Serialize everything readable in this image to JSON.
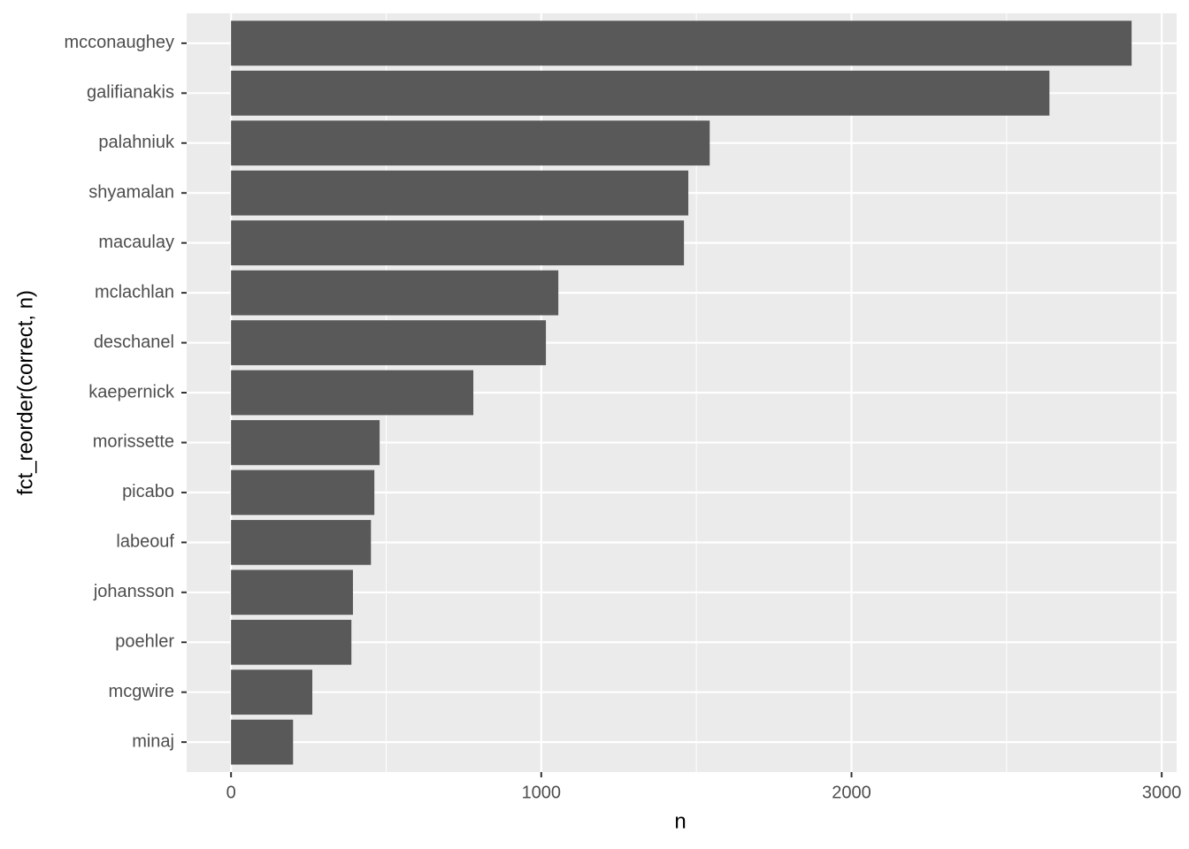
{
  "chart_data": {
    "type": "bar",
    "orientation": "horizontal",
    "x_label": "n",
    "y_label": "fct_reorder(correct, n)",
    "categories": [
      "mcconaughey",
      "galifianakis",
      "palahniuk",
      "shyamalan",
      "macaulay",
      "mclachlan",
      "deschanel",
      "kaepernick",
      "morissette",
      "picabo",
      "labeouf",
      "johansson",
      "poehler",
      "mcgwire",
      "minaj"
    ],
    "values": [
      2903,
      2638,
      1543,
      1474,
      1460,
      1055,
      1015,
      781,
      479,
      462,
      451,
      393,
      388,
      262,
      200
    ],
    "color": "#595959",
    "xlim": [
      -143,
      3048
    ],
    "xticks": [
      0,
      1000,
      2000,
      3000
    ],
    "x_minor_grid": [
      500,
      1500,
      2500
    ],
    "grid": true
  }
}
